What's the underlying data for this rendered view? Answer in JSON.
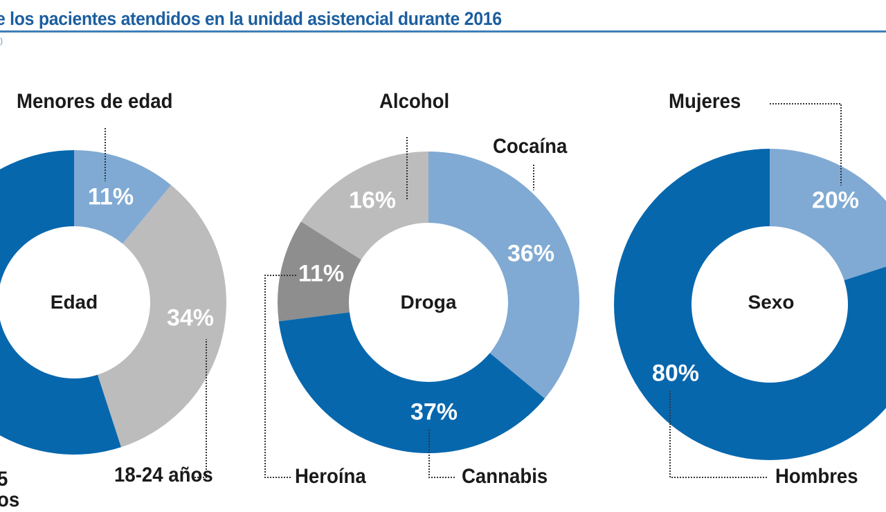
{
  "title": "e los pacientes atendidos en la unidad asistencial durante 2016",
  "subtitle": ")",
  "colors": {
    "dark_blue": "#0767ad",
    "light_blue": "#80aad3",
    "light_gray": "#bcbcbc",
    "dark_gray": "#8e8e8e",
    "title": "#1b5e9f"
  },
  "chart_data": [
    {
      "type": "pie",
      "variant": "donut",
      "center_label": "Edad",
      "slices": [
        {
          "label": "Menores de edad",
          "value": 11,
          "display": "11%",
          "color": "#80aad3"
        },
        {
          "label": "18-24 años",
          "value": 34,
          "display": "34%",
          "color": "#bcbcbc"
        },
        {
          "label": "",
          "value": 55,
          "display": "",
          "color": "#0767ad"
        }
      ],
      "cropped_label": [
        "5",
        "os"
      ]
    },
    {
      "type": "pie",
      "variant": "donut",
      "center_label": "Droga",
      "slices": [
        {
          "label": "Cocaína",
          "value": 36,
          "display": "36%",
          "color": "#80aad3"
        },
        {
          "label": "Cannabis",
          "value": 37,
          "display": "37%",
          "color": "#0767ad"
        },
        {
          "label": "Heroína",
          "value": 11,
          "display": "11%",
          "color": "#8e8e8e"
        },
        {
          "label": "Alcohol",
          "value": 16,
          "display": "16%",
          "color": "#bcbcbc"
        }
      ]
    },
    {
      "type": "pie",
      "variant": "donut",
      "center_label": "Sexo",
      "slices": [
        {
          "label": "Mujeres",
          "value": 20,
          "display": "20%",
          "color": "#80aad3"
        },
        {
          "label": "Hombres",
          "value": 80,
          "display": "80%",
          "color": "#0767ad"
        }
      ]
    }
  ]
}
